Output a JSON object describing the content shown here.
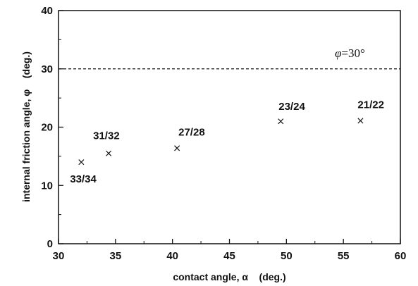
{
  "chart_data": {
    "type": "scatter",
    "title": "",
    "xlabel": "contact angle, α    (deg.)",
    "ylabel": "internal friction angle, φ    (deg.)",
    "xlim": [
      30,
      60
    ],
    "ylim": [
      0,
      40
    ],
    "x_ticks": [
      "30",
      "35",
      "40",
      "45",
      "50",
      "55",
      "60"
    ],
    "y_ticks": [
      "0",
      "10",
      "20",
      "30",
      "40"
    ],
    "grid": false,
    "marker": "x",
    "points": [
      {
        "x": 32.0,
        "y": 14.0,
        "label": "33/34"
      },
      {
        "x": 34.4,
        "y": 15.5,
        "label": "31/32"
      },
      {
        "x": 40.4,
        "y": 16.4,
        "label": "27/28"
      },
      {
        "x": 49.5,
        "y": 21.0,
        "label": "23/24"
      },
      {
        "x": 56.5,
        "y": 21.1,
        "label": "21/22"
      }
    ],
    "reference_line": {
      "y": 30,
      "style": "dashed",
      "label_symbol": "φ",
      "label_value": "=30°"
    }
  }
}
